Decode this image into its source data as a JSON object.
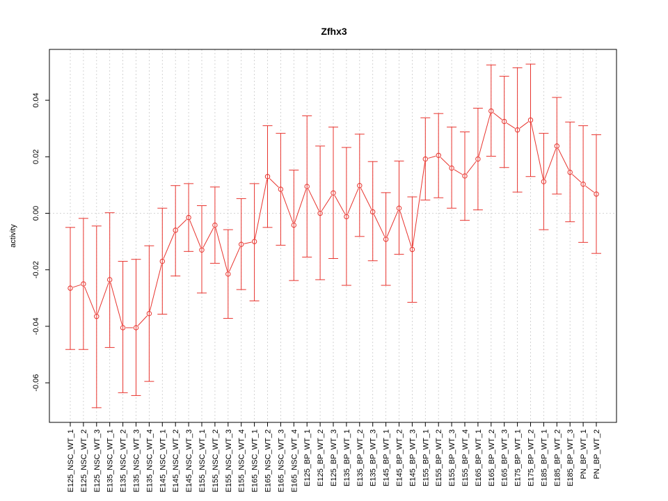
{
  "chart_data": {
    "type": "line",
    "title": "Zfhx3",
    "xlabel": "",
    "ylabel": "activity",
    "ylim": [
      -0.074,
      0.058
    ],
    "y_ticks": [
      -0.06,
      -0.04,
      -0.02,
      0.0,
      0.02,
      0.04
    ],
    "y_tick_labels": [
      "-0.06",
      "-0.04",
      "-0.02",
      "0.00",
      "0.02",
      "0.04"
    ],
    "grid": true,
    "error_bars": true,
    "categories": [
      "E125_NSC_WT_1",
      "E125_NSC_WT_2",
      "E125_NSC_WT_3",
      "E135_NSC_WT_1",
      "E135_NSC_WT_2",
      "E135_NSC_WT_3",
      "E135_NSC_WT_4",
      "E145_NSC_WT_1",
      "E145_NSC_WT_2",
      "E145_NSC_WT_3",
      "E155_NSC_WT_1",
      "E155_NSC_WT_2",
      "E155_NSC_WT_3",
      "E155_NSC_WT_4",
      "E165_NSC_WT_1",
      "E165_NSC_WT_2",
      "E165_NSC_WT_3",
      "E165_NSC_WT_4",
      "E125_BP_WT_1",
      "E125_BP_WT_2",
      "E125_BP_WT_3",
      "E135_BP_WT_1",
      "E135_BP_WT_2",
      "E135_BP_WT_3",
      "E145_BP_WT_1",
      "E145_BP_WT_2",
      "E145_BP_WT_3",
      "E155_BP_WT_1",
      "E155_BP_WT_2",
      "E155_BP_WT_3",
      "E155_BP_WT_4",
      "E165_BP_WT_1",
      "E165_BP_WT_2",
      "E165_BP_WT_3",
      "E175_BP_WT_1",
      "E175_BP_WT_2",
      "E185_BP_WT_1",
      "E185_BP_WT_2",
      "E185_BP_WT_3",
      "PN_BP_WT_1",
      "PN_BP_WT_2"
    ],
    "values": [
      -0.0265,
      -0.025,
      -0.0365,
      -0.0235,
      -0.0405,
      -0.0405,
      -0.0355,
      -0.017,
      -0.006,
      -0.0015,
      -0.013,
      -0.0042,
      -0.0215,
      -0.011,
      -0.01,
      0.013,
      0.0085,
      -0.0042,
      0.0095,
      0.0,
      0.0072,
      -0.0012,
      0.0098,
      0.0005,
      -0.0092,
      0.0018,
      -0.0128,
      0.0192,
      0.0205,
      0.016,
      0.0132,
      0.0192,
      0.0362,
      0.0325,
      0.0295,
      0.033,
      0.0112,
      0.0238,
      0.0145,
      0.0103,
      0.0068
    ],
    "upper": [
      -0.005,
      -0.0018,
      -0.0045,
      0.0002,
      -0.017,
      -0.0163,
      -0.0115,
      0.0018,
      0.0098,
      0.0105,
      0.0027,
      0.0093,
      -0.0058,
      0.0052,
      0.0105,
      0.031,
      0.0283,
      0.0153,
      0.0345,
      0.0238,
      0.0305,
      0.0233,
      0.028,
      0.0183,
      0.0073,
      0.0185,
      0.0058,
      0.0338,
      0.0353,
      0.0305,
      0.0288,
      0.0372,
      0.0525,
      0.0485,
      0.0515,
      0.0528,
      0.0283,
      0.041,
      0.0323,
      0.031,
      0.0278
    ],
    "lower": [
      -0.0482,
      -0.0482,
      -0.0688,
      -0.0475,
      -0.0635,
      -0.0645,
      -0.0595,
      -0.0357,
      -0.0222,
      -0.0135,
      -0.0282,
      -0.0177,
      -0.0372,
      -0.027,
      -0.031,
      -0.005,
      -0.0113,
      -0.0238,
      -0.0155,
      -0.0235,
      -0.016,
      -0.0255,
      -0.0082,
      -0.0168,
      -0.0255,
      -0.0145,
      -0.0315,
      0.0047,
      0.0055,
      0.0018,
      -0.0025,
      0.0012,
      0.0202,
      0.0162,
      0.0075,
      0.013,
      -0.0058,
      0.0068,
      -0.003,
      -0.0103,
      -0.0142
    ],
    "series_color": "#e8332d",
    "grid_color": "#c8c8c8"
  }
}
